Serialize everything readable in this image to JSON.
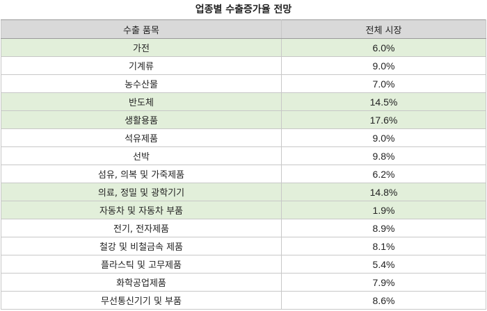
{
  "title": "업종별 수출증가율 전망",
  "headers": {
    "item": "수출 품목",
    "market": "전체 시장"
  },
  "rows": [
    {
      "item": "가전",
      "value": "6.0%",
      "highlight": true
    },
    {
      "item": "기계류",
      "value": "9.0%",
      "highlight": false
    },
    {
      "item": "농수산물",
      "value": "7.0%",
      "highlight": false
    },
    {
      "item": "반도체",
      "value": "14.5%",
      "highlight": true
    },
    {
      "item": "생활용품",
      "value": "17.6%",
      "highlight": true
    },
    {
      "item": "석유제품",
      "value": "9.0%",
      "highlight": false
    },
    {
      "item": "선박",
      "value": "9.8%",
      "highlight": false
    },
    {
      "item": "섬유, 의복 및 가죽제품",
      "value": "6.2%",
      "highlight": false
    },
    {
      "item": "의료, 정밀 및 광학기기",
      "value": "14.8%",
      "highlight": true
    },
    {
      "item": "자동차 및 자동차 부품",
      "value": "1.9%",
      "highlight": true
    },
    {
      "item": "전기, 전자제품",
      "value": "8.9%",
      "highlight": false
    },
    {
      "item": "철강 및 비철금속 제품",
      "value": "8.1%",
      "highlight": false
    },
    {
      "item": "플라스틱 및 고무제품",
      "value": "5.4%",
      "highlight": false
    },
    {
      "item": "화학공업제품",
      "value": "7.9%",
      "highlight": false
    },
    {
      "item": "무선통신기기 및 부품",
      "value": "8.6%",
      "highlight": false
    }
  ],
  "colors": {
    "highlight_row": "#e2efda",
    "header_bg": "#d9d9d9"
  }
}
